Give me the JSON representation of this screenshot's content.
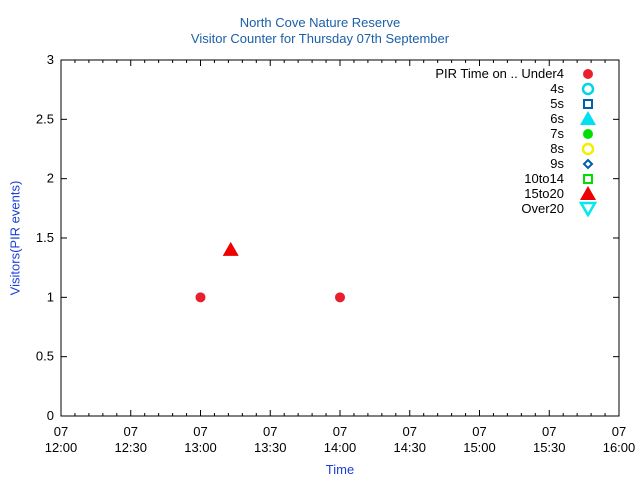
{
  "chart_data": {
    "type": "scatter",
    "title": "North Cove Nature Reserve",
    "subtitle": "Visitor Counter for Thursday 07th September",
    "xlabel": "Time",
    "ylabel": "Visitors(PIR events)",
    "xlim": [
      "12:00",
      "16:00"
    ],
    "ylim": [
      0,
      3
    ],
    "x_ticks": [
      {
        "day": "07",
        "time": "12:00"
      },
      {
        "day": "07",
        "time": "12:30"
      },
      {
        "day": "07",
        "time": "13:00"
      },
      {
        "day": "07",
        "time": "13:30"
      },
      {
        "day": "07",
        "time": "14:00"
      },
      {
        "day": "07",
        "time": "14:30"
      },
      {
        "day": "07",
        "time": "15:00"
      },
      {
        "day": "07",
        "time": "15:30"
      },
      {
        "day": "07",
        "time": "16:00"
      }
    ],
    "y_ticks": [
      "0",
      "0.5",
      "1",
      "1.5",
      "2",
      "2.5",
      "3"
    ],
    "grid": false,
    "legend_position": "top-right",
    "legend_title": "PIR Time on ..",
    "series": [
      {
        "name": "Under4",
        "marker": "filled-circle",
        "color": "#e8202e",
        "points": [
          {
            "x": "13:00",
            "y": 1
          },
          {
            "x": "14:00",
            "y": 1
          }
        ]
      },
      {
        "name": "4s",
        "marker": "open-circle",
        "color": "#00d4e8",
        "points": []
      },
      {
        "name": "5s",
        "marker": "open-square",
        "color": "#0060ad",
        "points": []
      },
      {
        "name": "6s",
        "marker": "filled-triangle",
        "color": "#00e0f0",
        "points": []
      },
      {
        "name": "7s",
        "marker": "filled-circle",
        "color": "#00e000",
        "points": []
      },
      {
        "name": "8s",
        "marker": "open-circle",
        "color": "#f0f000",
        "points": []
      },
      {
        "name": "9s",
        "marker": "open-diamond",
        "color": "#0060ad",
        "points": []
      },
      {
        "name": "10to14",
        "marker": "open-square",
        "color": "#00e000",
        "points": []
      },
      {
        "name": "15to20",
        "marker": "filled-triangle",
        "color": "#ee0000",
        "points": [
          {
            "x": "13:13",
            "y": 1.4
          }
        ]
      },
      {
        "name": "Over20",
        "marker": "open-triangle-down",
        "color": "#00e8f0",
        "points": []
      }
    ]
  }
}
